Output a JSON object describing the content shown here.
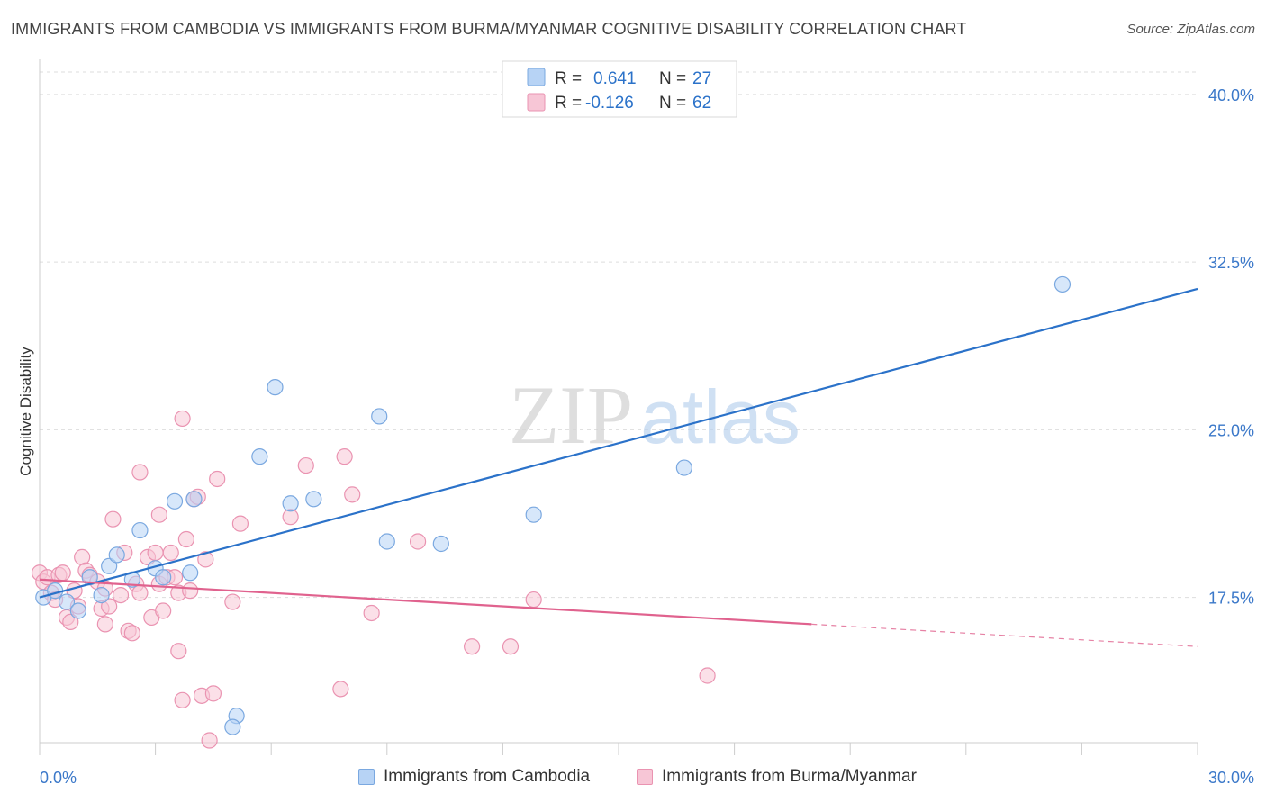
{
  "header": {
    "title": "IMMIGRANTS FROM CAMBODIA VS IMMIGRANTS FROM BURMA/MYANMAR COGNITIVE DISABILITY CORRELATION CHART",
    "source": "Source: ZipAtlas.com"
  },
  "watermark": {
    "part1": "ZIP",
    "part2": "atlas"
  },
  "colors": {
    "cambodia_fill": "#b7d3f5",
    "cambodia_stroke": "#7aa8e0",
    "cambodia_line": "#2b72c9",
    "burma_fill": "#f7c6d6",
    "burma_stroke": "#ea93b1",
    "burma_line": "#e0628e",
    "tick_label": "#3b78c9",
    "grid": "#dddddd"
  },
  "chart_data": {
    "type": "scatter",
    "title": "IMMIGRANTS FROM CAMBODIA VS IMMIGRANTS FROM BURMA/MYANMAR COGNITIVE DISABILITY CORRELATION CHART",
    "xlabel": "",
    "ylabel": "Cognitive Disability",
    "xlim": [
      0,
      30
    ],
    "ylim": [
      11,
      41
    ],
    "x_tick_labels": [
      {
        "value": 0,
        "label": "0.0%"
      },
      {
        "value": 30,
        "label": "30.0%"
      }
    ],
    "y_tick_labels": [
      {
        "value": 17.5,
        "label": "17.5%"
      },
      {
        "value": 25,
        "label": "25.0%"
      },
      {
        "value": 32.5,
        "label": "32.5%"
      },
      {
        "value": 40,
        "label": "40.0%"
      }
    ],
    "x_minor_ticks": [
      0,
      3,
      6,
      9,
      12,
      15,
      18,
      21,
      24,
      27,
      30
    ],
    "y_gridlines": [
      17.5,
      25,
      32.5,
      40
    ],
    "grid": true,
    "legend_position": "top-center",
    "stats": [
      {
        "r_label": "R =",
        "r_value": "0.641",
        "n_label": "N =",
        "n_value": "27"
      },
      {
        "r_label": "R =",
        "r_value": "-0.126",
        "n_label": "N =",
        "n_value": "62"
      }
    ],
    "series": [
      {
        "name": "Immigrants from Cambodia",
        "trend": {
          "x": [
            0,
            30
          ],
          "y": [
            17.5,
            31.3
          ],
          "dashed_from": null
        },
        "points": [
          [
            0.1,
            17.5
          ],
          [
            0.4,
            17.8
          ],
          [
            0.7,
            17.3
          ],
          [
            1.0,
            16.9
          ],
          [
            1.3,
            18.4
          ],
          [
            1.6,
            17.6
          ],
          [
            1.8,
            18.9
          ],
          [
            2.0,
            19.4
          ],
          [
            2.4,
            18.3
          ],
          [
            2.6,
            20.5
          ],
          [
            3.0,
            18.8
          ],
          [
            3.2,
            18.4
          ],
          [
            3.5,
            21.8
          ],
          [
            3.9,
            18.6
          ],
          [
            4.0,
            21.9
          ],
          [
            5.1,
            12.2
          ],
          [
            5.0,
            11.7
          ],
          [
            5.7,
            23.8
          ],
          [
            6.1,
            26.9
          ],
          [
            6.5,
            21.7
          ],
          [
            7.1,
            21.9
          ],
          [
            8.8,
            25.6
          ],
          [
            9.0,
            20.0
          ],
          [
            10.4,
            19.9
          ],
          [
            12.8,
            21.2
          ],
          [
            16.7,
            23.3
          ],
          [
            26.5,
            31.5
          ]
        ]
      },
      {
        "name": "Immigrants from Burma/Myanmar",
        "trend": {
          "x": [
            0,
            30
          ],
          "y": [
            18.3,
            15.3
          ],
          "dashed_from": 20
        },
        "points": [
          [
            0.0,
            18.6
          ],
          [
            0.1,
            18.2
          ],
          [
            0.2,
            18.4
          ],
          [
            0.3,
            17.7
          ],
          [
            0.4,
            17.4
          ],
          [
            0.5,
            18.5
          ],
          [
            0.6,
            18.6
          ],
          [
            0.7,
            16.6
          ],
          [
            0.8,
            16.4
          ],
          [
            0.9,
            17.8
          ],
          [
            1.0,
            17.1
          ],
          [
            1.1,
            19.3
          ],
          [
            1.2,
            18.7
          ],
          [
            1.3,
            18.5
          ],
          [
            1.5,
            18.2
          ],
          [
            1.6,
            17.0
          ],
          [
            1.7,
            17.9
          ],
          [
            1.7,
            16.3
          ],
          [
            1.8,
            17.1
          ],
          [
            1.9,
            21.0
          ],
          [
            2.1,
            17.6
          ],
          [
            2.2,
            19.5
          ],
          [
            2.3,
            16.0
          ],
          [
            2.4,
            15.9
          ],
          [
            2.5,
            18.1
          ],
          [
            2.6,
            17.7
          ],
          [
            2.6,
            23.1
          ],
          [
            2.8,
            19.3
          ],
          [
            2.9,
            16.6
          ],
          [
            3.0,
            19.5
          ],
          [
            3.1,
            18.1
          ],
          [
            3.1,
            21.2
          ],
          [
            3.2,
            16.9
          ],
          [
            3.3,
            18.4
          ],
          [
            3.4,
            19.5
          ],
          [
            3.5,
            18.4
          ],
          [
            3.6,
            17.7
          ],
          [
            3.6,
            15.1
          ],
          [
            3.7,
            12.9
          ],
          [
            3.7,
            25.5
          ],
          [
            3.8,
            20.1
          ],
          [
            3.9,
            17.8
          ],
          [
            4.0,
            21.9
          ],
          [
            4.1,
            22.0
          ],
          [
            4.2,
            13.1
          ],
          [
            4.3,
            19.2
          ],
          [
            4.4,
            11.1
          ],
          [
            4.5,
            13.2
          ],
          [
            4.6,
            22.8
          ],
          [
            5.0,
            17.3
          ],
          [
            5.2,
            20.8
          ],
          [
            6.5,
            21.1
          ],
          [
            6.9,
            23.4
          ],
          [
            7.8,
            13.4
          ],
          [
            7.9,
            23.8
          ],
          [
            8.6,
            16.8
          ],
          [
            9.8,
            20.0
          ],
          [
            11.2,
            15.3
          ],
          [
            12.2,
            15.3
          ],
          [
            12.8,
            17.4
          ],
          [
            17.3,
            14.0
          ],
          [
            8.1,
            22.1
          ]
        ]
      }
    ]
  }
}
